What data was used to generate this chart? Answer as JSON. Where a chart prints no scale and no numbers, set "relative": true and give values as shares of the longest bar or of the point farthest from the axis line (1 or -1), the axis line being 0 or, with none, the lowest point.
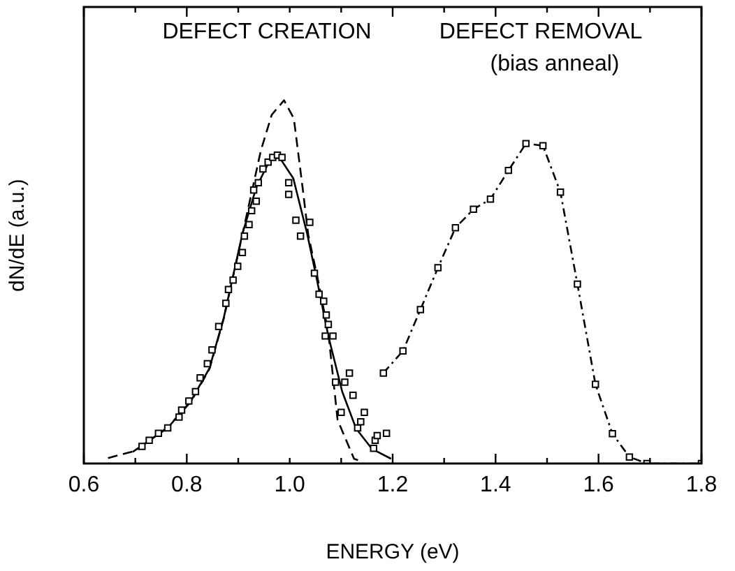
{
  "chart_data": {
    "type": "line",
    "xlabel": "ENERGY (eV)",
    "ylabel": "dN/dE (a.u.)",
    "relative": true,
    "grid": false,
    "legend": false,
    "annotations": [
      "DEFECT CREATION",
      "DEFECT REMOVAL",
      "(bias anneal)"
    ],
    "xlim": [
      0.6,
      1.8
    ],
    "xticks": [
      0.6,
      {
        "value": 0.7,
        "label": null
      },
      0.8,
      {
        "value": 0.9,
        "label": null
      },
      {
        "value": 1,
        "label": "1.0"
      },
      {
        "value": 1.1,
        "label": null
      },
      1.2,
      {
        "value": 1.3,
        "label": null
      },
      1.4,
      {
        "value": 1.5,
        "label": null
      },
      1.6,
      {
        "value": 1.7,
        "label": null
      },
      1.8
    ],
    "series": [
      {
        "type": "scatter",
        "color": "#000000",
        "marker": "square",
        "x": [
          0.713,
          0.727,
          0.745,
          0.763,
          0.785,
          0.79,
          0.804,
          0.817,
          0.826,
          0.84,
          0.849,
          0.862,
          0.876,
          0.881,
          0.89,
          0.899,
          0.908,
          0.912,
          0.921,
          0.926,
          0.93,
          0.935,
          0.939,
          0.948,
          0.958,
          0.967,
          0.976,
          0.985,
          0.998,
          0.998,
          1.012,
          1.021,
          1.039,
          1.048,
          1.057,
          1.066,
          1.069,
          1.071,
          1.075,
          1.084,
          1.089,
          1.1,
          1.107,
          1.116,
          1.123,
          1.132,
          1.138,
          1.145,
          1.163,
          1.166,
          1.17,
          1.188
        ],
        "values": [
          0.047,
          0.064,
          0.083,
          0.098,
          0.128,
          0.147,
          0.172,
          0.198,
          0.236,
          0.275,
          0.313,
          0.377,
          0.441,
          0.479,
          0.505,
          0.543,
          0.581,
          0.626,
          0.658,
          0.696,
          0.753,
          0.722,
          0.773,
          0.811,
          0.83,
          0.843,
          0.849,
          0.843,
          0.741,
          0.773,
          0.67,
          0.626,
          0.664,
          0.524,
          0.466,
          0.447,
          0.351,
          0.409,
          0.383,
          0.351,
          0.224,
          0.141,
          0.224,
          0.249,
          0.188,
          0.098,
          0.115,
          0.141,
          0.042,
          0.064,
          0.077,
          0.083
        ]
      },
      {
        "type": "line",
        "color": "#000000",
        "marker": "none",
        "line_style": "solid",
        "x": [
          0.695,
          0.763,
          0.808,
          0.844,
          0.872,
          0.908,
          0.935,
          0.962,
          0.98,
          1.007,
          1.034,
          1.053,
          1.075,
          1.102,
          1.129,
          1.16,
          1.197
        ],
        "values": [
          0.032,
          0.098,
          0.172,
          0.262,
          0.402,
          0.632,
          0.76,
          0.837,
          0.843,
          0.785,
          0.632,
          0.505,
          0.351,
          0.198,
          0.096,
          0.04,
          0.013
        ]
      },
      {
        "type": "line",
        "color": "#000000",
        "marker": "none",
        "line_style": "dashed",
        "x": [
          0.647,
          0.7,
          0.763,
          0.808,
          0.844,
          0.872,
          0.908,
          0.944,
          0.965,
          0.989,
          1.008,
          1.025,
          1.036,
          1.055,
          1.075,
          1.093,
          1.125,
          1.143
        ],
        "values": [
          0.015,
          0.035,
          0.1,
          0.17,
          0.26,
          0.4,
          0.63,
          0.862,
          0.96,
          1,
          0.95,
          0.76,
          0.63,
          0.505,
          0.36,
          0.12,
          0.013,
          0.004
        ]
      },
      {
        "type": "line",
        "color": "#000000",
        "marker": "square",
        "line_style": "dashdot",
        "x": [
          1.182,
          1.22,
          1.254,
          1.288,
          1.322,
          1.357,
          1.39,
          1.425,
          1.459,
          1.492,
          1.526,
          1.559,
          1.594,
          1.627,
          1.66,
          1.694,
          1.8
        ],
        "values": [
          0.249,
          0.31,
          0.424,
          0.539,
          0.649,
          0.7,
          0.728,
          0.807,
          0.881,
          0.875,
          0.747,
          0.494,
          0.218,
          0.082,
          0.018,
          0,
          0
        ]
      }
    ]
  }
}
